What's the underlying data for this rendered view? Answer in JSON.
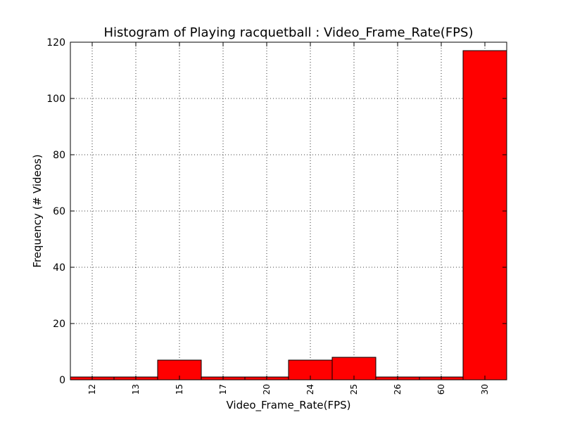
{
  "chart_data": {
    "type": "bar",
    "title": "Histogram of Playing racquetball : Video_Frame_Rate(FPS)",
    "xlabel": "Video_Frame_Rate(FPS)",
    "ylabel": "Frequency (# Videos)",
    "categories": [
      "12",
      "13",
      "15",
      "17",
      "20",
      "24",
      "25",
      "26",
      "60",
      "30"
    ],
    "values": [
      1,
      1,
      7,
      1,
      1,
      7,
      8,
      1,
      1,
      117
    ],
    "ylim": [
      0,
      120
    ],
    "yticks": [
      0,
      20,
      40,
      60,
      80,
      100,
      120
    ],
    "grid": true,
    "bar_color": "#ff0000",
    "edge_color": "#000000"
  }
}
